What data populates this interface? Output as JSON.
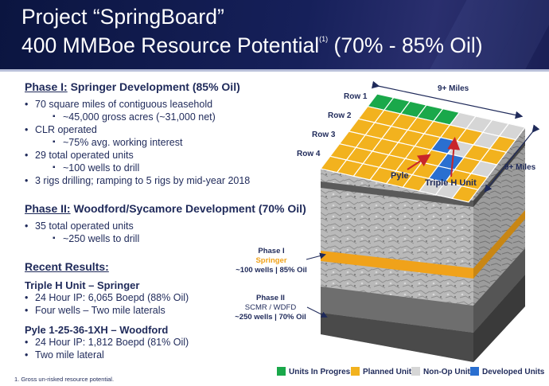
{
  "header": {
    "title_line1": "Project “SpringBoard”",
    "title_line2_main": "400 MMBoe Resource Potential",
    "title_line2_sup": "(1)",
    "title_line2_tail": "(70% - 85% Oil)"
  },
  "phase1": {
    "heading_underlined": "Phase I:",
    "heading_rest": "Springer Development (85% Oil)",
    "bullets": [
      "70 square miles of contiguous leasehold",
      "~45,000 gross acres (~31,000 net)",
      "CLR operated",
      "~75% avg. working interest",
      "29 total operated units",
      "~100 wells to drill",
      "3 rigs drilling; ramping to 5 rigs by mid-year 2018"
    ]
  },
  "phase2": {
    "heading_underlined": "Phase II:",
    "heading_rest": "Woodford/Sycamore Development (70% Oil)",
    "bullets": [
      "35 total operated units",
      "~250 wells to drill"
    ]
  },
  "recent": {
    "heading": "Recent Results:",
    "triple_h": {
      "title": "Triple H Unit – Springer",
      "bullets": [
        "24 Hour IP: 6,065 Boepd (88% Oil)",
        "Four wells – Two mile laterals"
      ]
    },
    "pyle": {
      "title": "Pyle 1-25-36-1XH – Woodford",
      "bullets": [
        "24 Hour IP: 1,812 Boepd (81% Oil)",
        "Two mile lateral"
      ]
    }
  },
  "footnote": "1.   Gross un-risked resource potential.",
  "diagram": {
    "rows": [
      "Row 1",
      "Row 2",
      "Row 3",
      "Row 4"
    ],
    "width_label": "9+ Miles",
    "depth_label": "9+ Miles",
    "pyle_label": "Pyle",
    "triple_h_label": "Triple H Unit",
    "phase1": {
      "title": "Phase I",
      "zone": "Springer",
      "detail": "~100 wells | 85% Oil"
    },
    "phase2": {
      "title": "Phase II",
      "zone": "SCMR / WDFD",
      "detail": "~250 wells | 70% Oil"
    }
  },
  "legend": [
    {
      "label": "Units In Progress",
      "color": "#1aa84a"
    },
    {
      "label": "Planned Units",
      "color": "#f2b21e"
    },
    {
      "label": "Non-Op Units",
      "color": "#d6d6d6"
    },
    {
      "label": "Developed Units",
      "color": "#2a6fd0"
    }
  ]
}
